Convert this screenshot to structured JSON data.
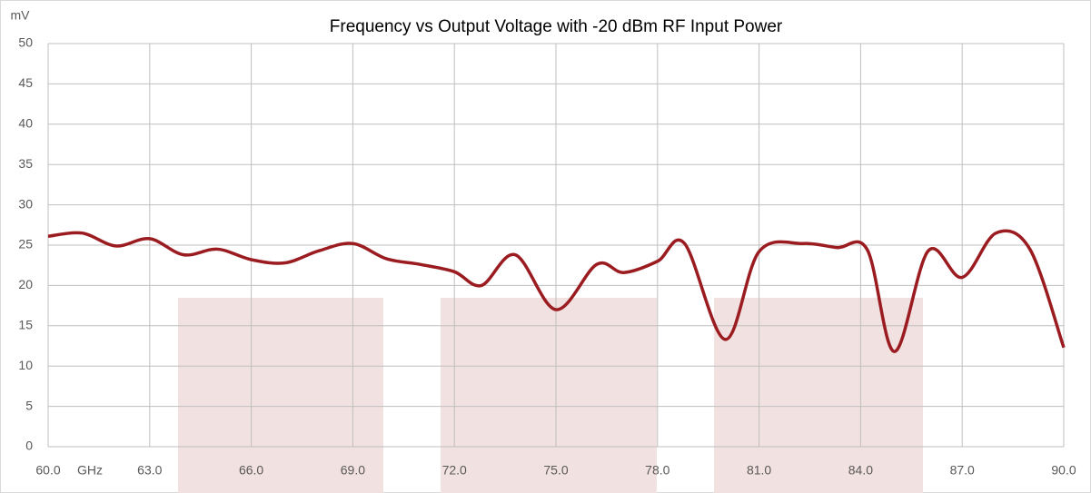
{
  "chart_data": {
    "type": "line",
    "title": "Frequency vs Output Voltage with -20 dBm RF Input Power",
    "x_label": "GHz",
    "y_label": "mV",
    "x": [
      60.0,
      61.0,
      62.0,
      63.0,
      64.0,
      65.0,
      66.0,
      67.0,
      68.0,
      69.0,
      70.0,
      71.0,
      72.0,
      72.8,
      73.8,
      75.0,
      76.2,
      77.0,
      78.0,
      78.8,
      80.0,
      81.0,
      82.3,
      83.3,
      84.2,
      85.0,
      86.0,
      87.0,
      88.0,
      89.0,
      90.0
    ],
    "series": [
      {
        "name": "Output Voltage",
        "color": "#9b1c20",
        "values": [
          26.1,
          26.5,
          24.9,
          25.8,
          23.8,
          24.5,
          23.2,
          22.8,
          24.3,
          25.2,
          23.3,
          22.6,
          21.7,
          20.0,
          23.8,
          17.0,
          22.6,
          21.6,
          23.0,
          25.2,
          13.3,
          24.2,
          25.2,
          24.7,
          24.4,
          11.8,
          24.3,
          21.0,
          26.5,
          24.5,
          12.3
        ]
      }
    ],
    "xlim": [
      60,
      90
    ],
    "xticks": [
      {
        "value": 60,
        "label": "60.0"
      },
      {
        "value": 63,
        "label": "63.0"
      },
      {
        "value": 66,
        "label": "66.0"
      },
      {
        "value": 69,
        "label": "69.0"
      },
      {
        "value": 72,
        "label": "72.0"
      },
      {
        "value": 75,
        "label": "75.0"
      },
      {
        "value": 78,
        "label": "78.0"
      },
      {
        "value": 81,
        "label": "81.0"
      },
      {
        "value": 84,
        "label": "84.0"
      },
      {
        "value": 87,
        "label": "87.0"
      },
      {
        "value": 90,
        "label": "90.0"
      }
    ],
    "ylim": [
      0,
      50
    ],
    "yticks": [
      0,
      5,
      10,
      15,
      20,
      25,
      30,
      35,
      40,
      45,
      50
    ],
    "grid": true
  }
}
